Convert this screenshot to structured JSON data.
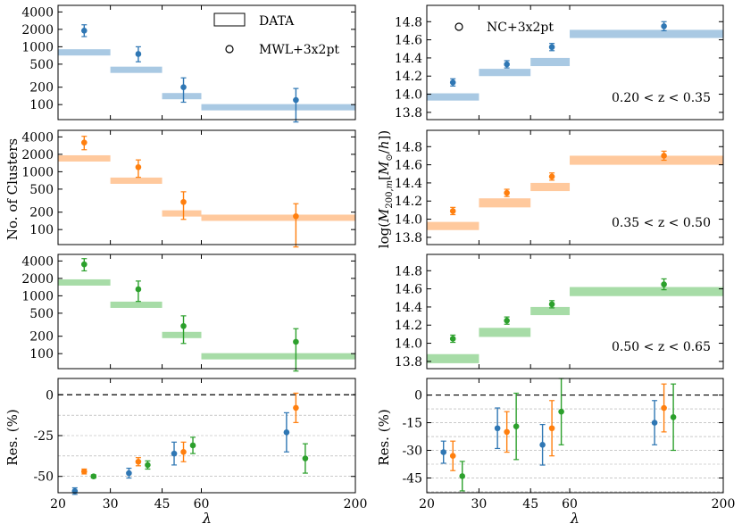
{
  "figure": {
    "ylabel_left_count": "No. of Clusters",
    "ylabel_left_res": "Res. (%)",
    "ylabel_right_mass": "log(M200m [M⊙/h])",
    "ylabel_right_res": "Res. (%)",
    "xlabel": "λ"
  },
  "colors": {
    "blue": "#2f77b4",
    "orange": "#ff7f0e",
    "green": "#2ca02c",
    "blue_light": "#a9c9e3",
    "orange_light": "#ffc99d",
    "green_light": "#a7dca7"
  },
  "chart_data": [
    {
      "id": "count-z1",
      "type": "scatter",
      "yscale": "log",
      "x_ticks": [
        "20",
        "30",
        "45",
        "60",
        "200"
      ],
      "y_ticks": [
        "100",
        "200",
        "500",
        "1000",
        "2000",
        "4000"
      ],
      "legend": [
        {
          "label": "DATA",
          "marker": "box"
        },
        {
          "label": "MWL+3x2pt",
          "marker": "circle"
        }
      ],
      "data_bins": [
        {
          "bin": [
            20,
            30
          ],
          "value": 800,
          "color": "blue_light"
        },
        {
          "bin": [
            30,
            45
          ],
          "value": 400,
          "color": "blue_light"
        },
        {
          "bin": [
            45,
            60
          ],
          "value": 140,
          "color": "blue_light"
        },
        {
          "bin": [
            60,
            200
          ],
          "value": 90,
          "color": "blue_light"
        }
      ],
      "points": [
        {
          "x": 1,
          "value": 1900,
          "err_lo": 400,
          "err_hi": 500,
          "color": "blue"
        },
        {
          "x": 2,
          "value": 750,
          "err_lo": 200,
          "err_hi": 250,
          "color": "blue"
        },
        {
          "x": 3,
          "value": 200,
          "err_lo": 90,
          "err_hi": 90,
          "color": "blue"
        },
        {
          "x": 4,
          "value": 120,
          "err_lo": 70,
          "err_hi": 70,
          "color": "blue"
        }
      ]
    },
    {
      "id": "count-z2",
      "type": "scatter",
      "yscale": "log",
      "y_ticks": [
        "100",
        "200",
        "500",
        "1000",
        "2000",
        "4000"
      ],
      "data_bins": [
        {
          "bin": [
            20,
            30
          ],
          "value": 1700,
          "color": "orange_light"
        },
        {
          "bin": [
            30,
            45
          ],
          "value": 700,
          "color": "orange_light"
        },
        {
          "bin": [
            45,
            60
          ],
          "value": 190,
          "color": "orange_light"
        },
        {
          "bin": [
            60,
            200
          ],
          "value": 160,
          "color": "orange_light"
        }
      ],
      "points": [
        {
          "x": 1,
          "value": 3200,
          "err_lo": 800,
          "err_hi": 900,
          "color": "orange"
        },
        {
          "x": 2,
          "value": 1200,
          "err_lo": 400,
          "err_hi": 400,
          "color": "orange"
        },
        {
          "x": 3,
          "value": 300,
          "err_lo": 150,
          "err_hi": 150,
          "color": "orange"
        },
        {
          "x": 4,
          "value": 170,
          "err_lo": 120,
          "err_hi": 110,
          "color": "orange"
        }
      ]
    },
    {
      "id": "count-z3",
      "type": "scatter",
      "yscale": "log",
      "y_ticks": [
        "100",
        "200",
        "500",
        "1000",
        "2000",
        "4000"
      ],
      "data_bins": [
        {
          "bin": [
            20,
            30
          ],
          "value": 1700,
          "color": "green_light"
        },
        {
          "bin": [
            30,
            45
          ],
          "value": 700,
          "color": "green_light"
        },
        {
          "bin": [
            45,
            60
          ],
          "value": 210,
          "color": "green_light"
        },
        {
          "bin": [
            60,
            200
          ],
          "value": 90,
          "color": "green_light"
        }
      ],
      "points": [
        {
          "x": 1,
          "value": 3500,
          "err_lo": 800,
          "err_hi": 900,
          "color": "green"
        },
        {
          "x": 2,
          "value": 1300,
          "err_lo": 500,
          "err_hi": 500,
          "color": "green"
        },
        {
          "x": 3,
          "value": 300,
          "err_lo": 150,
          "err_hi": 150,
          "color": "green"
        },
        {
          "x": 4,
          "value": 160,
          "err_lo": 110,
          "err_hi": 110,
          "color": "green"
        }
      ]
    },
    {
      "id": "res-left",
      "type": "scatter",
      "yscale": "linear",
      "ylim": [
        -60,
        10
      ],
      "y_ticks": [
        "0",
        "-25",
        "-50"
      ],
      "x_ticks": [
        "20",
        "30",
        "45",
        "60",
        "200"
      ],
      "groups": [
        {
          "pos": 1,
          "points": [
            {
              "offset": -1,
              "value": -59,
              "err": 2,
              "color": "blue"
            },
            {
              "offset": 0,
              "value": -47,
              "err": 1.5,
              "color": "orange"
            },
            {
              "offset": 1,
              "value": -50,
              "err": 1,
              "color": "green"
            }
          ]
        },
        {
          "pos": 2,
          "points": [
            {
              "offset": -1,
              "value": -48,
              "err": 3,
              "color": "blue"
            },
            {
              "offset": 0,
              "value": -41,
              "err": 2.5,
              "color": "orange"
            },
            {
              "offset": 1,
              "value": -43,
              "err": 2.5,
              "color": "green"
            }
          ]
        },
        {
          "pos": 3,
          "points": [
            {
              "offset": -1,
              "value": -36,
              "err": 7,
              "color": "blue"
            },
            {
              "offset": 0,
              "value": -35,
              "err": 6,
              "color": "orange"
            },
            {
              "offset": 1,
              "value": -31,
              "err": 5,
              "color": "green"
            }
          ]
        },
        {
          "pos": 4,
          "points": [
            {
              "offset": -1,
              "value": -23,
              "err": 12,
              "color": "blue"
            },
            {
              "offset": 0,
              "value": -8,
              "err": 9,
              "color": "orange"
            },
            {
              "offset": 1,
              "value": -39,
              "err": 9,
              "color": "green"
            }
          ]
        }
      ]
    },
    {
      "id": "mass-z1",
      "type": "scatter",
      "yscale": "linear",
      "ylim": [
        13.72,
        14.98
      ],
      "y_ticks": [
        "13.8",
        "14.0",
        "14.2",
        "14.4",
        "14.6",
        "14.8"
      ],
      "legend": [
        {
          "label": "NC+3x2pt",
          "marker": "circle"
        }
      ],
      "annotation": "0.20 < z < 0.35",
      "data_bins": [
        {
          "bin": [
            20,
            30
          ],
          "lo": 13.93,
          "hi": 14.01,
          "color": "blue_light"
        },
        {
          "bin": [
            30,
            45
          ],
          "lo": 14.2,
          "hi": 14.28,
          "color": "blue_light"
        },
        {
          "bin": [
            45,
            60
          ],
          "lo": 14.31,
          "hi": 14.4,
          "color": "blue_light"
        },
        {
          "bin": [
            60,
            200
          ],
          "lo": 14.62,
          "hi": 14.71,
          "color": "blue_light"
        }
      ],
      "points": [
        {
          "x": 1,
          "value": 14.13,
          "err": 0.04,
          "color": "blue"
        },
        {
          "x": 2,
          "value": 14.33,
          "err": 0.04,
          "color": "blue"
        },
        {
          "x": 3,
          "value": 14.52,
          "err": 0.04,
          "color": "blue"
        },
        {
          "x": 4,
          "value": 14.75,
          "err": 0.05,
          "color": "blue"
        }
      ]
    },
    {
      "id": "mass-z2",
      "type": "scatter",
      "yscale": "linear",
      "ylim": [
        13.72,
        14.98
      ],
      "y_ticks": [
        "13.8",
        "14.0",
        "14.2",
        "14.4",
        "14.6",
        "14.8"
      ],
      "annotation": "0.35 < z < 0.50",
      "data_bins": [
        {
          "bin": [
            20,
            30
          ],
          "lo": 13.88,
          "hi": 13.97,
          "color": "orange_light"
        },
        {
          "bin": [
            30,
            45
          ],
          "lo": 14.13,
          "hi": 14.23,
          "color": "orange_light"
        },
        {
          "bin": [
            45,
            60
          ],
          "lo": 14.31,
          "hi": 14.4,
          "color": "orange_light"
        },
        {
          "bin": [
            60,
            200
          ],
          "lo": 14.6,
          "hi": 14.7,
          "color": "orange_light"
        }
      ],
      "points": [
        {
          "x": 1,
          "value": 14.09,
          "err": 0.04,
          "color": "orange"
        },
        {
          "x": 2,
          "value": 14.29,
          "err": 0.04,
          "color": "orange"
        },
        {
          "x": 3,
          "value": 14.47,
          "err": 0.04,
          "color": "orange"
        },
        {
          "x": 4,
          "value": 14.7,
          "err": 0.05,
          "color": "orange"
        }
      ]
    },
    {
      "id": "mass-z3",
      "type": "scatter",
      "yscale": "linear",
      "ylim": [
        13.72,
        14.98
      ],
      "y_ticks": [
        "13.8",
        "14.0",
        "14.2",
        "14.4",
        "14.6",
        "14.8"
      ],
      "annotation": "0.50 < z < 0.65",
      "data_bins": [
        {
          "bin": [
            20,
            30
          ],
          "lo": 13.78,
          "hi": 13.88,
          "color": "green_light"
        },
        {
          "bin": [
            30,
            45
          ],
          "lo": 14.07,
          "hi": 14.17,
          "color": "green_light"
        },
        {
          "bin": [
            45,
            60
          ],
          "lo": 14.31,
          "hi": 14.4,
          "color": "green_light"
        },
        {
          "bin": [
            60,
            200
          ],
          "lo": 14.52,
          "hi": 14.62,
          "color": "green_light"
        }
      ],
      "points": [
        {
          "x": 1,
          "value": 14.05,
          "err": 0.04,
          "color": "green"
        },
        {
          "x": 2,
          "value": 14.25,
          "err": 0.04,
          "color": "green"
        },
        {
          "x": 3,
          "value": 14.43,
          "err": 0.04,
          "color": "green"
        },
        {
          "x": 4,
          "value": 14.65,
          "err": 0.06,
          "color": "green"
        }
      ]
    },
    {
      "id": "res-right",
      "type": "scatter",
      "yscale": "linear",
      "ylim": [
        -53,
        9
      ],
      "y_ticks": [
        "0",
        "-15",
        "-30",
        "-45"
      ],
      "x_ticks": [
        "20",
        "30",
        "45",
        "60",
        "200"
      ],
      "groups": [
        {
          "pos": 1,
          "points": [
            {
              "offset": -1,
              "value": -31,
              "err": 6,
              "color": "blue"
            },
            {
              "offset": 0,
              "value": -33,
              "err": 8,
              "color": "orange"
            },
            {
              "offset": 1,
              "value": -44,
              "err": 8,
              "color": "green"
            }
          ]
        },
        {
          "pos": 2,
          "points": [
            {
              "offset": -1,
              "value": -18,
              "err": 11,
              "color": "blue"
            },
            {
              "offset": 0,
              "value": -20,
              "err": 11,
              "color": "orange"
            },
            {
              "offset": 1,
              "value": -17,
              "err": 18,
              "color": "green"
            }
          ]
        },
        {
          "pos": 3,
          "points": [
            {
              "offset": -1,
              "value": -27,
              "err": 11,
              "color": "blue"
            },
            {
              "offset": 0,
              "value": -18,
              "err": 15,
              "color": "orange"
            },
            {
              "offset": 1,
              "value": -9,
              "err": 18,
              "color": "green"
            }
          ]
        },
        {
          "pos": 4,
          "points": [
            {
              "offset": -1,
              "value": -15,
              "err": 12,
              "color": "blue"
            },
            {
              "offset": 0,
              "value": -7,
              "err": 13,
              "color": "orange"
            },
            {
              "offset": 1,
              "value": -12,
              "err": 18,
              "color": "green"
            }
          ]
        }
      ]
    }
  ]
}
